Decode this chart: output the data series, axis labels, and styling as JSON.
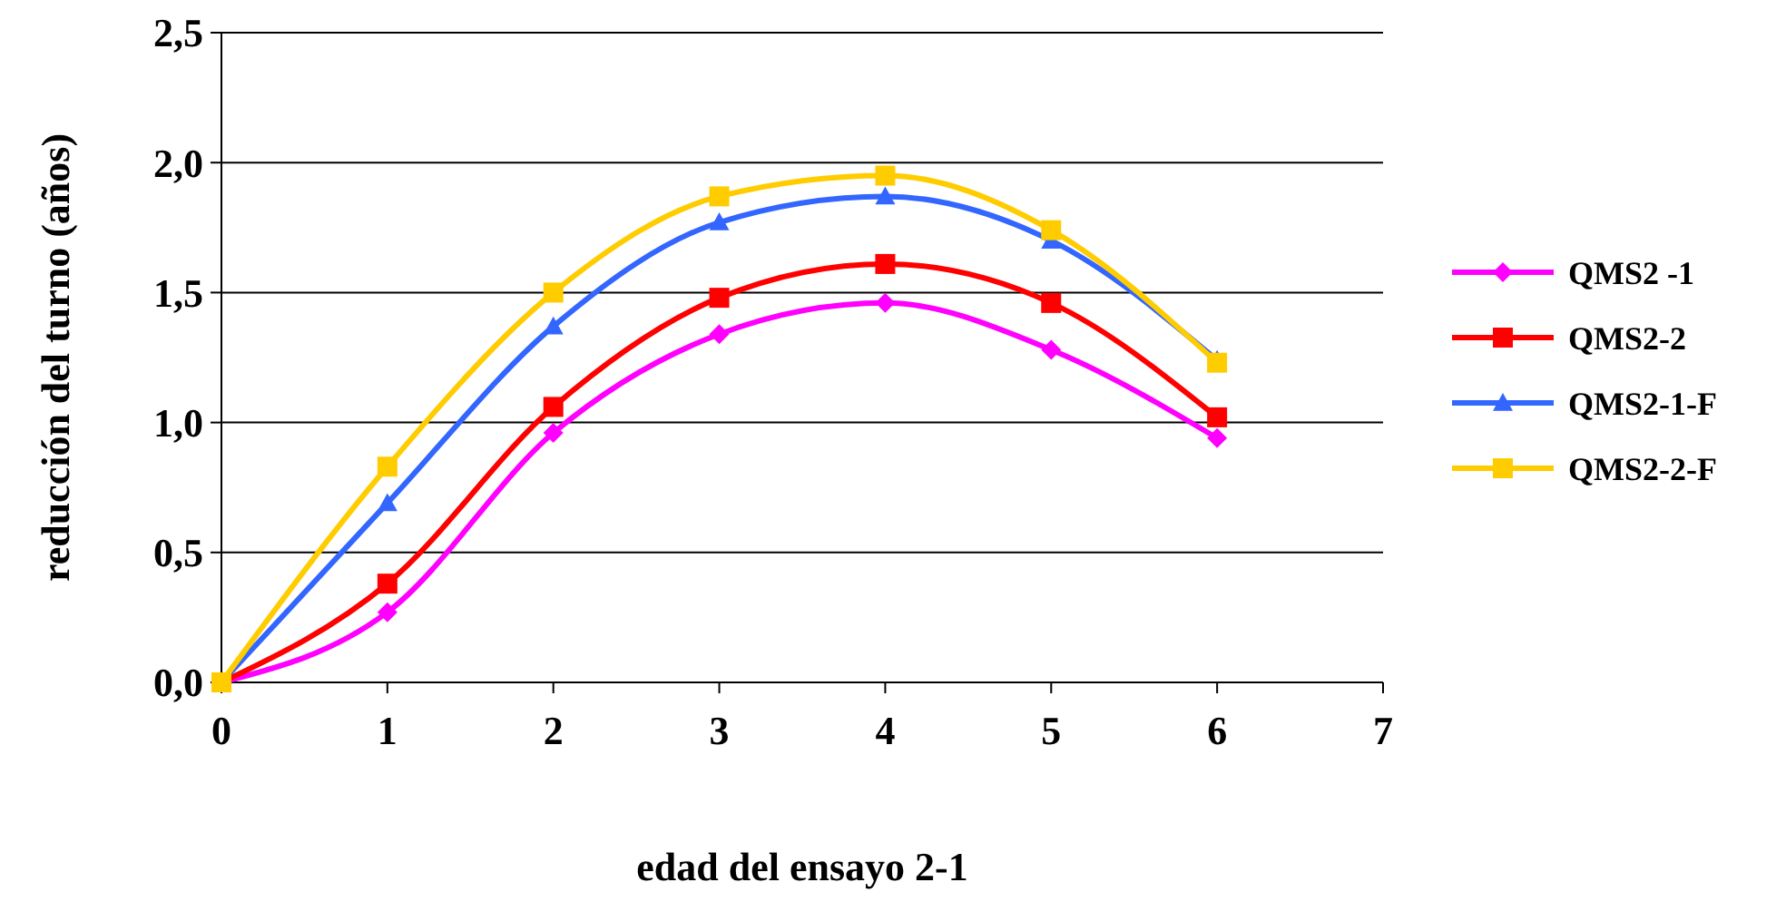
{
  "chart_data": {
    "type": "line",
    "xlabel": "edad del ensayo 2-1",
    "ylabel": "reducción del turno (años)",
    "x": [
      0,
      1,
      2,
      3,
      4,
      5,
      6
    ],
    "xlim": [
      0,
      7
    ],
    "xticks": [
      0,
      1,
      2,
      3,
      4,
      5,
      6,
      7
    ],
    "ylim": [
      0,
      2.5
    ],
    "yticks": [
      {
        "value": 0,
        "label": "0,0"
      },
      {
        "value": 0.5,
        "label": "0,5"
      },
      {
        "value": 1,
        "label": "1,0"
      },
      {
        "value": 1.5,
        "label": "1,5"
      },
      {
        "value": 2,
        "label": "2,0"
      },
      {
        "value": 2.5,
        "label": "2,5"
      }
    ],
    "grid": "y",
    "legend": "right",
    "line_style": "solid",
    "series": [
      {
        "name": "QMS2 -1",
        "color": "#ff00ff",
        "marker": "diamond",
        "values": [
          0,
          0.27,
          0.96,
          1.34,
          1.46,
          1.28,
          0.94
        ]
      },
      {
        "name": "QMS2-2",
        "color": "#ff0000",
        "marker": "square",
        "values": [
          0,
          0.38,
          1.06,
          1.48,
          1.61,
          1.46,
          1.02
        ]
      },
      {
        "name": "QMS2-1-F",
        "color": "#3366ff",
        "marker": "triangle",
        "values": [
          0,
          0.69,
          1.37,
          1.77,
          1.87,
          1.7,
          1.24
        ]
      },
      {
        "name": "QMS2-2-F",
        "color": "#ffcc00",
        "marker": "square",
        "values": [
          0,
          0.83,
          1.5,
          1.87,
          1.95,
          1.74,
          1.23
        ]
      }
    ]
  }
}
